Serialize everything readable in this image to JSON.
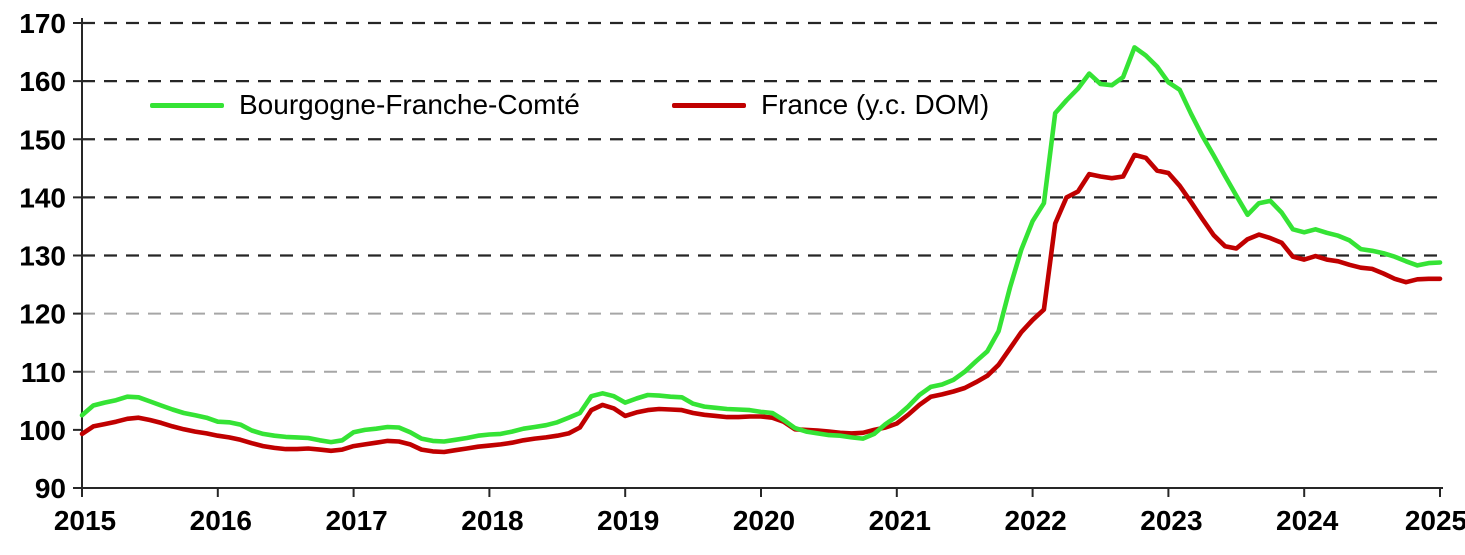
{
  "chart_data": {
    "type": "line",
    "title": "",
    "frequency": "monthly",
    "x_start_year": 2015,
    "x_axis": {
      "ticks": [
        2015,
        2016,
        2017,
        2018,
        2019,
        2020,
        2021,
        2022,
        2023,
        2024,
        2025
      ]
    },
    "y_axis": {
      "min": 90,
      "max": 170,
      "step": 10,
      "ticks": [
        90,
        100,
        110,
        120,
        130,
        140,
        150,
        160,
        170
      ],
      "dark_gridlines": [
        130,
        140,
        150,
        160,
        170
      ],
      "light_gridlines": [
        110,
        120
      ],
      "no_gridline": [
        90,
        100
      ]
    },
    "grid": {
      "dark_color": "#262626",
      "light_color": "#a6a6a6",
      "axis_color": "#262626"
    },
    "legend_position": "top-inside",
    "series": [
      {
        "name": "Bourgogne-Franche-Comté",
        "color": "#35e335",
        "values": [
          102.5,
          104.2,
          104.7,
          105.1,
          105.7,
          105.6,
          104.9,
          104.2,
          103.5,
          102.9,
          102.5,
          102.1,
          101.4,
          101.3,
          100.9,
          99.9,
          99.3,
          99.0,
          98.8,
          98.7,
          98.6,
          98.2,
          97.9,
          98.2,
          99.6,
          100.0,
          100.2,
          100.5,
          100.4,
          99.6,
          98.5,
          98.1,
          98.0,
          98.3,
          98.6,
          99.0,
          99.2,
          99.3,
          99.7,
          100.2,
          100.5,
          100.8,
          101.3,
          102.1,
          102.9,
          105.8,
          106.3,
          105.8,
          104.7,
          105.4,
          106.0,
          105.9,
          105.7,
          105.6,
          104.5,
          104.0,
          103.8,
          103.6,
          103.5,
          103.4,
          103.1,
          102.9,
          101.7,
          100.3,
          99.7,
          99.4,
          99.1,
          99.0,
          98.7,
          98.5,
          99.3,
          101.0,
          102.3,
          104.0,
          106.0,
          107.4,
          107.8,
          108.6,
          110.0,
          111.8,
          113.5,
          117.0,
          124.5,
          131.0,
          135.9,
          139.0,
          154.5,
          156.7,
          158.7,
          161.3,
          159.5,
          159.3,
          160.7,
          165.8,
          164.4,
          162.5,
          159.8,
          158.5,
          154.4,
          150.6,
          147.2,
          143.7,
          140.3,
          137.0,
          139.0,
          139.4,
          137.4,
          134.5,
          134.0,
          134.5,
          133.9,
          133.4,
          132.6,
          131.1,
          130.8,
          130.4,
          129.8,
          129.0,
          128.3,
          128.7,
          128.8
        ]
      },
      {
        "name": "France (y.c. DOM)",
        "color": "#c00000",
        "values": [
          99.3,
          100.6,
          101.0,
          101.4,
          101.9,
          102.1,
          101.7,
          101.2,
          100.6,
          100.1,
          99.7,
          99.4,
          99.0,
          98.7,
          98.3,
          97.7,
          97.2,
          96.9,
          96.7,
          96.7,
          96.8,
          96.6,
          96.4,
          96.6,
          97.2,
          97.5,
          97.8,
          98.1,
          98.0,
          97.5,
          96.6,
          96.3,
          96.2,
          96.5,
          96.8,
          97.1,
          97.3,
          97.5,
          97.8,
          98.2,
          98.5,
          98.7,
          99.0,
          99.4,
          100.4,
          103.4,
          104.3,
          103.7,
          102.4,
          103.0,
          103.4,
          103.6,
          103.5,
          103.4,
          102.9,
          102.6,
          102.4,
          102.2,
          102.2,
          102.3,
          102.3,
          102.1,
          101.4,
          100.1,
          100.0,
          99.9,
          99.7,
          99.5,
          99.4,
          99.5,
          100.0,
          100.4,
          101.1,
          102.6,
          104.3,
          105.7,
          106.1,
          106.6,
          107.2,
          108.2,
          109.3,
          111.2,
          114.0,
          116.8,
          118.9,
          120.7,
          135.5,
          140.0,
          141.0,
          144.0,
          143.6,
          143.3,
          143.6,
          147.3,
          146.8,
          144.6,
          144.2,
          142.0,
          139.2,
          136.3,
          133.5,
          131.6,
          131.2,
          132.8,
          133.6,
          133.0,
          132.2,
          129.8,
          129.3,
          129.9,
          129.3,
          129.0,
          128.4,
          127.9,
          127.7,
          126.9,
          126.0,
          125.4,
          125.9,
          126.0,
          126.0
        ]
      }
    ]
  }
}
